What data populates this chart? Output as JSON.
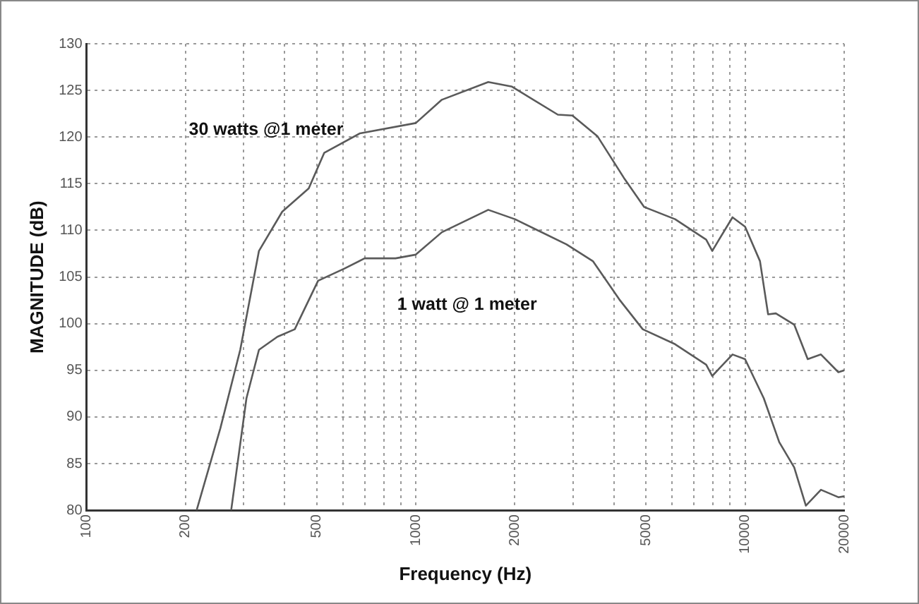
{
  "chart_data": {
    "type": "line",
    "xlabel": "Frequency (Hz)",
    "ylabel": "MAGNITUDE (dB)",
    "log": "x",
    "grid": true,
    "marker": "none",
    "line_style": "solid",
    "xlim": [
      100,
      20000
    ],
    "ylim": [
      80,
      130
    ],
    "xticks": [
      100,
      200,
      {
        "value": 300,
        "label": null
      },
      {
        "value": 400,
        "label": null
      },
      500,
      {
        "value": 600,
        "label": null
      },
      {
        "value": 700,
        "label": null
      },
      {
        "value": 800,
        "label": null
      },
      {
        "value": 900,
        "label": null
      },
      1000,
      2000,
      {
        "value": 3000,
        "label": null
      },
      {
        "value": 4000,
        "label": null
      },
      5000,
      {
        "value": 6000,
        "label": null
      },
      {
        "value": 7000,
        "label": null
      },
      {
        "value": 8000,
        "label": null
      },
      {
        "value": 9000,
        "label": null
      },
      10000,
      20000
    ],
    "yticks": [
      80,
      85,
      90,
      95,
      100,
      105,
      110,
      115,
      120,
      125,
      130
    ],
    "legend": false,
    "series": [
      {
        "name": "30 watts @1 meter",
        "color": "#5a5a5a",
        "x": [
          216,
          255,
          293,
          334,
          393,
          473,
          527,
          677,
          1000,
          1200,
          1660,
          1960,
          2700,
          2990,
          3560,
          4290,
          4940,
          6130,
          7620,
          7950,
          9160,
          10000,
          11100,
          11750,
          12400,
          14100,
          15500,
          17000,
          19200,
          20000
        ],
        "values": [
          80,
          88.8,
          97.2,
          107.8,
          112,
          114.5,
          118.3,
          120.4,
          121.5,
          124,
          125.9,
          125.4,
          122.4,
          122.3,
          120.1,
          115.6,
          112.5,
          111.2,
          109,
          107.8,
          111.4,
          110.4,
          106.7,
          101,
          101.1,
          99.9,
          96.2,
          96.7,
          94.8,
          95
        ]
      },
      {
        "name": "1 watt @ 1 meter",
        "color": "#5a5a5a",
        "x": [
          275,
          306,
          334,
          380,
          429,
          505,
          607,
          699,
          868,
          1000,
          1200,
          1660,
          2000,
          2870,
          3450,
          4150,
          4890,
          6130,
          7620,
          7950,
          9160,
          10000,
          11400,
          12700,
          14100,
          15300,
          17000,
          19200,
          20000
        ],
        "values": [
          80,
          92,
          97.2,
          98.6,
          99.4,
          104.6,
          105.9,
          107,
          107,
          107.4,
          109.8,
          112.2,
          111.2,
          108.5,
          106.7,
          102.6,
          99.4,
          97.8,
          95.6,
          94.4,
          96.7,
          96.2,
          92,
          87.3,
          84.6,
          80.5,
          82.2,
          81.4,
          81.5
        ]
      }
    ]
  }
}
